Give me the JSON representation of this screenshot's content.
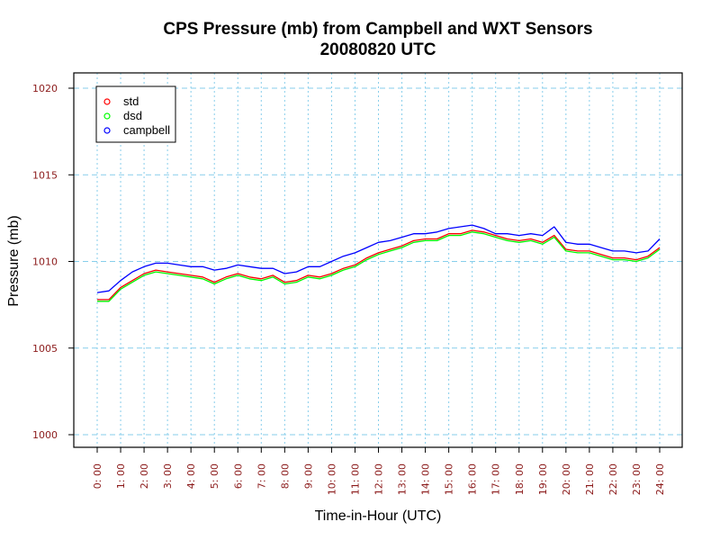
{
  "chart_data": {
    "type": "line",
    "title": "CPS Pressure (mb) from Campbell and WXT Sensors",
    "subtitle": "20080820  UTC",
    "xlabel": "Time-in-Hour (UTC)",
    "ylabel": "Pressure (mb)",
    "xlim": [
      0,
      24
    ],
    "ylim": [
      1000,
      1020
    ],
    "grid": true,
    "legend_position": "top-left",
    "x_tick_labels": [
      "0: 00",
      "1: 00",
      "2: 00",
      "3: 00",
      "4: 00",
      "5: 00",
      "6: 00",
      "7: 00",
      "8: 00",
      "9: 00",
      "10: 00",
      "11: 00",
      "12: 00",
      "13: 00",
      "14: 00",
      "15: 00",
      "16: 00",
      "17: 00",
      "18: 00",
      "19: 00",
      "20: 00",
      "21: 00",
      "22: 00",
      "23: 00",
      "24: 00"
    ],
    "y_ticks": [
      1000,
      1005,
      1010,
      1015,
      1020
    ],
    "x": [
      0,
      0.5,
      1,
      1.5,
      2,
      2.5,
      3,
      3.5,
      4,
      4.5,
      5,
      5.5,
      6,
      6.5,
      7,
      7.5,
      8,
      8.5,
      9,
      9.5,
      10,
      10.5,
      11,
      11.5,
      12,
      12.5,
      13,
      13.5,
      14,
      14.5,
      15,
      15.5,
      16,
      16.5,
      17,
      17.5,
      18,
      18.5,
      19,
      19.5,
      20,
      20.5,
      21,
      21.5,
      22,
      22.5,
      23,
      23.5,
      24
    ],
    "series": [
      {
        "name": "std",
        "color": "#ff0000",
        "values": [
          1007.8,
          1007.8,
          1008.5,
          1008.9,
          1009.3,
          1009.5,
          1009.4,
          1009.3,
          1009.2,
          1009.1,
          1008.8,
          1009.1,
          1009.3,
          1009.1,
          1009.0,
          1009.2,
          1008.8,
          1008.9,
          1009.2,
          1009.1,
          1009.3,
          1009.6,
          1009.8,
          1010.2,
          1010.5,
          1010.7,
          1010.9,
          1011.2,
          1011.3,
          1011.3,
          1011.6,
          1011.6,
          1011.8,
          1011.7,
          1011.5,
          1011.3,
          1011.2,
          1011.3,
          1011.1,
          1011.5,
          1010.7,
          1010.6,
          1010.6,
          1010.4,
          1010.2,
          1010.2,
          1010.1,
          1010.3,
          1010.8
        ]
      },
      {
        "name": "dsd",
        "color": "#00ff00",
        "values": [
          1007.7,
          1007.7,
          1008.4,
          1008.8,
          1009.2,
          1009.4,
          1009.3,
          1009.2,
          1009.1,
          1009.0,
          1008.7,
          1009.0,
          1009.2,
          1009.0,
          1008.9,
          1009.1,
          1008.7,
          1008.8,
          1009.1,
          1009.0,
          1009.2,
          1009.5,
          1009.7,
          1010.1,
          1010.4,
          1010.6,
          1010.8,
          1011.1,
          1011.2,
          1011.2,
          1011.5,
          1011.5,
          1011.7,
          1011.6,
          1011.4,
          1011.2,
          1011.1,
          1011.2,
          1011.0,
          1011.4,
          1010.6,
          1010.5,
          1010.5,
          1010.3,
          1010.1,
          1010.1,
          1010.0,
          1010.2,
          1010.7
        ]
      },
      {
        "name": "campbell",
        "color": "#0000ff",
        "values": [
          1008.2,
          1008.3,
          1008.9,
          1009.4,
          1009.7,
          1009.9,
          1009.9,
          1009.8,
          1009.7,
          1009.7,
          1009.5,
          1009.6,
          1009.8,
          1009.7,
          1009.6,
          1009.6,
          1009.3,
          1009.4,
          1009.7,
          1009.7,
          1010.0,
          1010.3,
          1010.5,
          1010.8,
          1011.1,
          1011.2,
          1011.4,
          1011.6,
          1011.6,
          1011.7,
          1011.9,
          1012.0,
          1012.1,
          1011.9,
          1011.6,
          1011.6,
          1011.5,
          1011.6,
          1011.5,
          1012.0,
          1011.1,
          1011.0,
          1011.0,
          1010.8,
          1010.6,
          1010.6,
          1010.5,
          1010.6,
          1011.3
        ]
      }
    ]
  }
}
